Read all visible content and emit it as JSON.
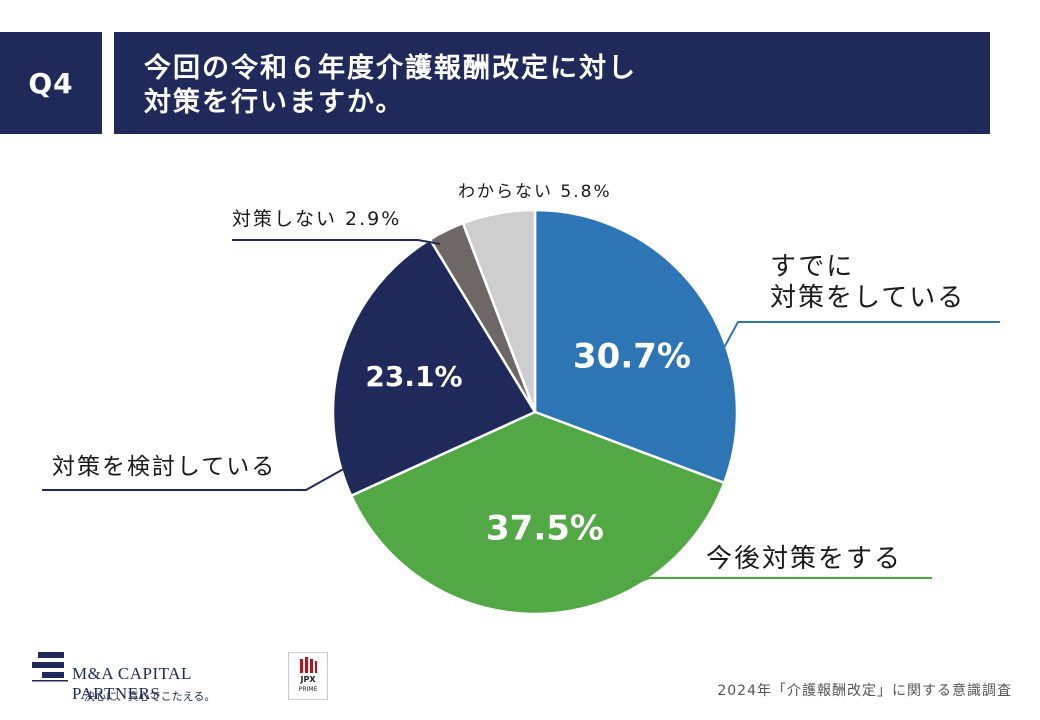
{
  "header": {
    "question_no": "Q4",
    "title_line1": "今回の令和６年度介護報酬改定に対し",
    "title_line2": "対策を行いますか。"
  },
  "chart_data": {
    "type": "pie",
    "start_angle_deg": 0,
    "direction": "clockwise",
    "slices": [
      {
        "label_lines": [
          "すでに",
          "対策をしている"
        ],
        "value": 30.7,
        "display": "30.7%",
        "color": "#2e75b6",
        "label_position": "outside-right",
        "value_inside": true
      },
      {
        "label_lines": [
          "今後対策をする"
        ],
        "value": 37.5,
        "display": "37.5%",
        "color": "#52a844",
        "label_position": "outside-bottom-right",
        "value_inside": true
      },
      {
        "label_lines": [
          "対策を検討している"
        ],
        "value": 23.1,
        "display": "23.1%",
        "color": "#1f2a5a",
        "label_position": "outside-left",
        "value_inside": true
      },
      {
        "label_lines": [
          "対策しない  2.9%"
        ],
        "value": 2.9,
        "display": "2.9%",
        "color": "#6d6766",
        "label_position": "outside-top-left",
        "value_inside": false
      },
      {
        "label_lines": [
          "わからない 5.8%"
        ],
        "value": 5.8,
        "display": "5.8%",
        "color": "#cfcecf",
        "label_position": "outside-top",
        "value_inside": false
      }
    ]
  },
  "footer": {
    "source": "2024年「介護報酬改定」に関する意識調査",
    "company_name": "M&A CAPITAL PARTNERS",
    "company_tagline": "決心に、真心でこたえる。",
    "jpx_line1": "JPX",
    "jpx_line2": "PRIME"
  }
}
